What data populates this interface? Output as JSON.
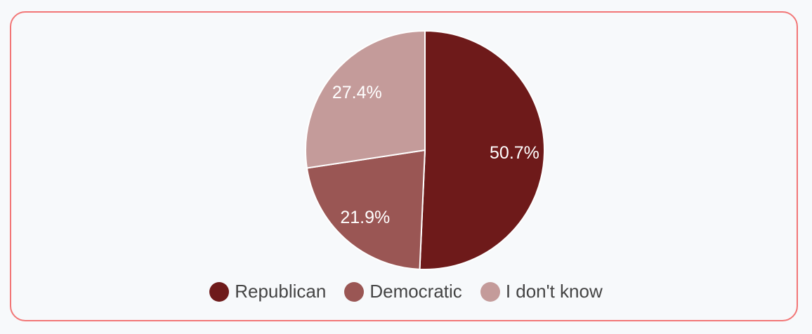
{
  "chart_data": {
    "type": "pie",
    "title": "",
    "start_angle": "top, clockwise",
    "legend_position": "bottom",
    "slices": [
      {
        "label": "Republican",
        "value": 50.7,
        "display": "50.7%",
        "color": "#6e1a1a"
      },
      {
        "label": "Democratic",
        "value": 21.9,
        "display": "21.9%",
        "color": "#9a5654"
      },
      {
        "label": "I don't know",
        "value": 27.4,
        "display": "27.4%",
        "color": "#c49b9a"
      }
    ]
  }
}
